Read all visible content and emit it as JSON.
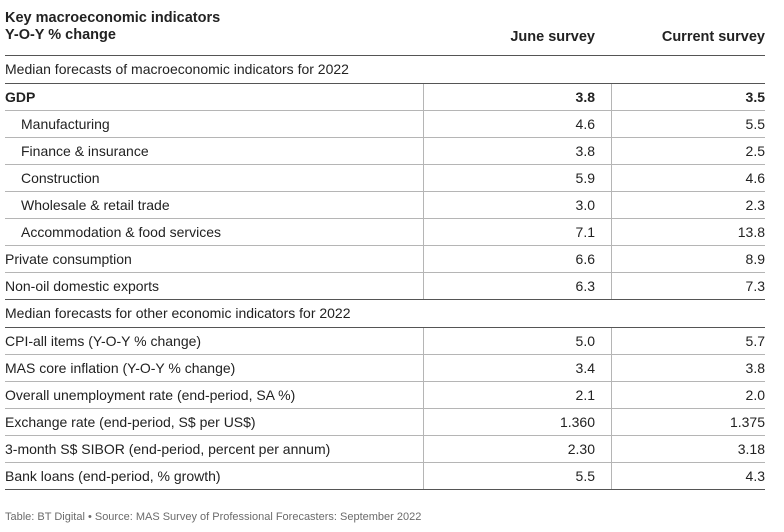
{
  "header": {
    "title_line1": "Key macroeconomic indicators",
    "title_line2": "Y-O-Y % change",
    "col_june": "June survey",
    "col_current": "Current survey"
  },
  "section1": {
    "title": "Median forecasts of macroeconomic indicators for 2022",
    "rows": [
      {
        "label": "GDP",
        "june": "3.8",
        "current": "3.5",
        "bold": true,
        "indent": false
      },
      {
        "label": "Manufacturing",
        "june": "4.6",
        "current": "5.5",
        "bold": false,
        "indent": true
      },
      {
        "label": "Finance & insurance",
        "june": "3.8",
        "current": "2.5",
        "bold": false,
        "indent": true
      },
      {
        "label": "Construction",
        "june": "5.9",
        "current": "4.6",
        "bold": false,
        "indent": true
      },
      {
        "label": "Wholesale & retail trade",
        "june": "3.0",
        "current": "2.3",
        "bold": false,
        "indent": true
      },
      {
        "label": "Accommodation & food services",
        "june": "7.1",
        "current": "13.8",
        "bold": false,
        "indent": true
      },
      {
        "label": "Private consumption",
        "june": "6.6",
        "current": "8.9",
        "bold": false,
        "indent": false
      },
      {
        "label": "Non-oil domestic exports",
        "june": "6.3",
        "current": "7.3",
        "bold": false,
        "indent": false
      }
    ]
  },
  "section2": {
    "title": "Median forecasts for other economic indicators for 2022",
    "rows": [
      {
        "label": "CPI-all items (Y-O-Y % change)",
        "june": "5.0",
        "current": "5.7"
      },
      {
        "label": "MAS core inflation (Y-O-Y % change)",
        "june": "3.4",
        "current": "3.8"
      },
      {
        "label": "Overall unemployment rate (end-period, SA %)",
        "june": "2.1",
        "current": "2.0"
      },
      {
        "label": "Exchange rate (end-period, S$ per US$)",
        "june": "1.360",
        "current": "1.375"
      },
      {
        "label": "3-month S$ SIBOR (end-period, percent per annum)",
        "june": "2.30",
        "current": "3.18"
      },
      {
        "label": "Bank loans (end-period, % growth)",
        "june": "5.5",
        "current": "4.3"
      }
    ]
  },
  "footer": "Table: BT Digital • Source: MAS Survey of Professional Forecasters: September 2022"
}
